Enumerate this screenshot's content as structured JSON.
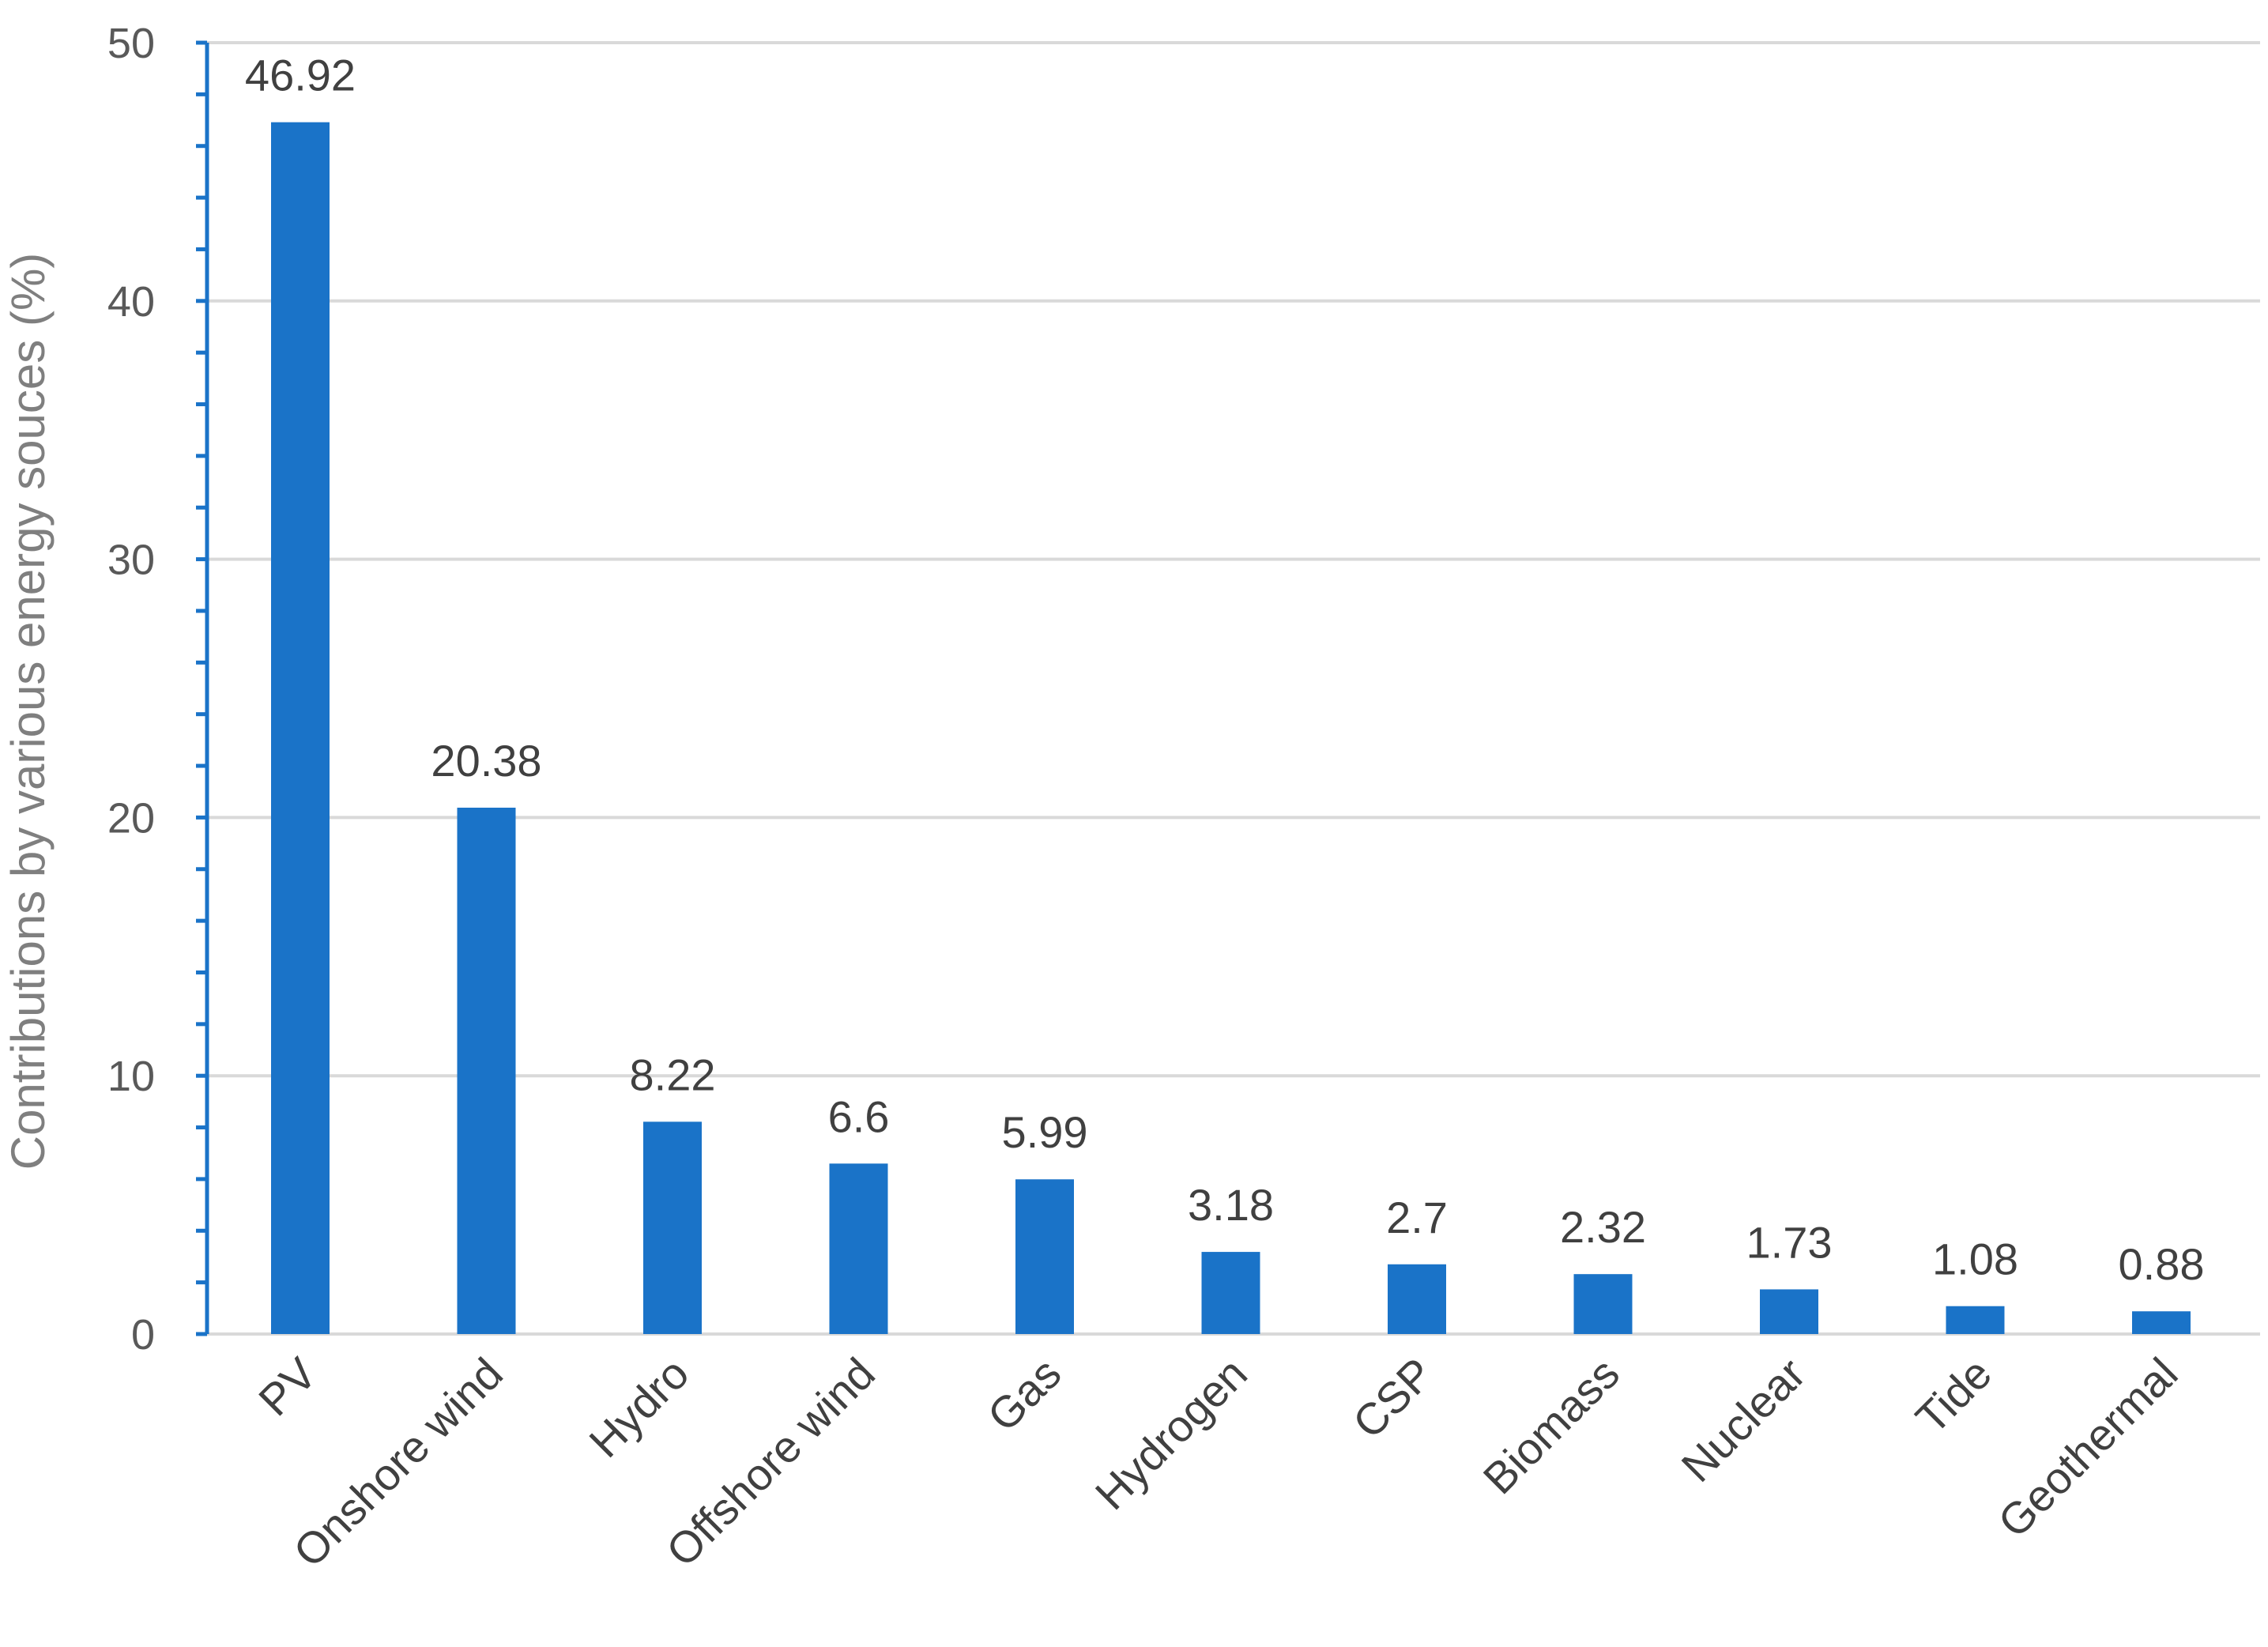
{
  "chart_data": {
    "type": "bar",
    "title": "",
    "xlabel": "",
    "ylabel": "Contributions by various energy souces (%)",
    "categories": [
      "PV",
      "Onshore wind",
      "Hydro",
      "Offshore wind",
      "Gas",
      "Hydrogen",
      "CSP",
      "Biomass",
      "Nuclear",
      "Tide",
      "Geothermal"
    ],
    "values": [
      46.92,
      20.38,
      8.22,
      6.6,
      5.99,
      3.18,
      2.7,
      2.32,
      1.73,
      1.08,
      0.88
    ],
    "data_labels": [
      "46.92",
      "20.38",
      "8.22",
      "6.6",
      "5.99",
      "3.18",
      "2.7",
      "2.32",
      "1.73",
      "1.08",
      "0.88"
    ],
    "ylim": [
      0,
      50
    ],
    "yticks": [
      0,
      10,
      20,
      30,
      40,
      50
    ],
    "ytick_labels": [
      "0",
      "10",
      "20",
      "30",
      "40",
      "50"
    ],
    "minor_tick_step": 2,
    "grid": true,
    "legend": "none",
    "colors": {
      "bar": "#1a73c8",
      "grid": "#d9d9d9",
      "axis": "#1a73c8"
    }
  }
}
